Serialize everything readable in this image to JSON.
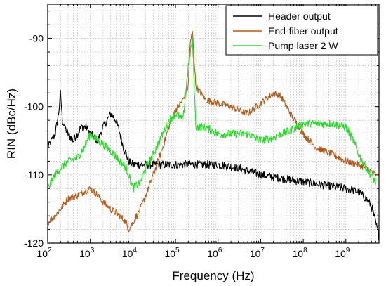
{
  "chart_data": {
    "type": "line",
    "xlabel": "Frequency (Hz)",
    "ylabel": "RIN (dBc/Hz)",
    "x_scale": "log",
    "xlim": [
      100,
      6000000000
    ],
    "ylim": [
      -120,
      -85
    ],
    "x_tick_values": [
      100,
      1000,
      10000,
      100000,
      1000000,
      10000000,
      100000000,
      1000000000
    ],
    "x_tick_labels": [
      {
        "base": "10",
        "exp": "2"
      },
      {
        "base": "10",
        "exp": "3"
      },
      {
        "base": "10",
        "exp": "4"
      },
      {
        "base": "10",
        "exp": "5"
      },
      {
        "base": "10",
        "exp": "6"
      },
      {
        "base": "10",
        "exp": "7"
      },
      {
        "base": "10",
        "exp": "8"
      },
      {
        "base": "10",
        "exp": "9"
      }
    ],
    "y_tick_values": [
      -120,
      -110,
      -100,
      -90
    ],
    "y_tick_labels": [
      "-120",
      "-110",
      "-100",
      "-90"
    ],
    "grid": true,
    "legend_position": "top-right",
    "series": [
      {
        "name": "Header output",
        "color": "#000000",
        "noise": 0.6,
        "x": [
          100,
          150,
          180,
          200,
          220,
          250,
          300,
          400,
          500,
          600,
          700,
          800,
          1000,
          1500,
          2000,
          2500,
          3000,
          3500,
          4000,
          5000,
          6000,
          7000,
          8000,
          10000,
          15000,
          20000,
          30000,
          50000,
          100000,
          200000,
          500000,
          1000000,
          3000000,
          10000000,
          30000000,
          100000000,
          300000000,
          1000000000,
          2000000000,
          3000000000,
          4000000000,
          5000000000,
          6000000000
        ],
        "y": [
          -106,
          -104,
          -101,
          -98,
          -102,
          -103,
          -104,
          -105,
          -104,
          -103,
          -103,
          -103,
          -104,
          -105,
          -103,
          -102,
          -101,
          -101.5,
          -102,
          -104,
          -106,
          -107,
          -108,
          -108.5,
          -108.5,
          -108.5,
          -108.5,
          -108.5,
          -108.5,
          -108.5,
          -108.5,
          -108.5,
          -109,
          -110,
          -110.5,
          -111,
          -111.5,
          -112,
          -112.5,
          -113.5,
          -114.5,
          -117,
          -119
        ]
      },
      {
        "name": "End-fiber output",
        "color": "#b25c1c",
        "noise": 0.5,
        "x": [
          100,
          150,
          200,
          300,
          500,
          700,
          1000,
          1500,
          2000,
          3000,
          5000,
          7000,
          8000,
          10000,
          15000,
          20000,
          30000,
          50000,
          70000,
          100000,
          150000,
          200000,
          220000,
          250000,
          300000,
          500000,
          1000000,
          2000000,
          3000000,
          5000000,
          10000000,
          20000000,
          30000000,
          50000000,
          100000000,
          200000000,
          500000000,
          1000000000,
          2000000000,
          3000000000,
          5000000000
        ],
        "y": [
          -117,
          -116,
          -115,
          -113.5,
          -113,
          -112.5,
          -112,
          -113,
          -114,
          -115,
          -116,
          -117,
          -118,
          -117,
          -115,
          -113,
          -110,
          -106,
          -103,
          -100.5,
          -99,
          -97,
          -91,
          -89,
          -97,
          -99,
          -99.5,
          -100,
          -100.5,
          -101,
          -99.5,
          -98,
          -98.5,
          -101,
          -104,
          -106,
          -107,
          -108,
          -108.5,
          -109,
          -110
        ]
      },
      {
        "name": "Pump laser 2 W",
        "color": "#22dd22",
        "noise": 0.6,
        "x": [
          100,
          150,
          200,
          300,
          500,
          700,
          1000,
          1500,
          2000,
          3000,
          5000,
          7000,
          8000,
          10000,
          15000,
          20000,
          30000,
          50000,
          70000,
          100000,
          150000,
          200000,
          250000,
          300000,
          500000,
          1000000,
          2000000,
          3000000,
          5000000,
          10000000,
          20000000,
          30000000,
          50000000,
          100000000,
          200000000,
          300000000,
          500000000,
          1000000000,
          1500000000,
          2000000000,
          3000000000,
          5000000000
        ],
        "y": [
          -112,
          -110,
          -109,
          -108,
          -107.5,
          -106,
          -104,
          -105,
          -105.5,
          -106.5,
          -108,
          -109,
          -110,
          -112,
          -111,
          -109,
          -107,
          -104,
          -102,
          -101,
          -102,
          -94,
          -90,
          -103,
          -103,
          -104,
          -104,
          -104,
          -104,
          -105,
          -104.5,
          -104,
          -103.5,
          -102.5,
          -102.5,
          -102.5,
          -102.5,
          -103,
          -105,
          -107,
          -109,
          -111
        ]
      }
    ]
  }
}
